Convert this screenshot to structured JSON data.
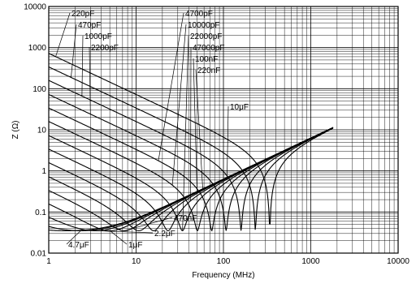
{
  "chart_data": {
    "type": "line",
    "title": "",
    "xlabel": "Frequency (MHz)",
    "ylabel": "Z (Ω)",
    "xscale": "log",
    "yscale": "log",
    "xlim": [
      1,
      10000
    ],
    "ylim": [
      0.01,
      10000
    ],
    "x_ticks": [
      "1",
      "10",
      "100",
      "1000",
      "10000"
    ],
    "y_ticks": [
      "0.01",
      "0.1",
      "1",
      "10",
      "100",
      "1000",
      "10000"
    ],
    "grid": true,
    "esl_nH": 1.0,
    "esr_ohm": 0.035,
    "series": [
      {
        "name": "220pF",
        "capacitance_pF": 220,
        "label_above_plot": true
      },
      {
        "name": "470pF",
        "capacitance_pF": 470,
        "label_above_plot": true
      },
      {
        "name": "1000pF",
        "capacitance_pF": 1000,
        "label_above_plot": true
      },
      {
        "name": "2200pF",
        "capacitance_pF": 2200,
        "label_above_plot": true
      },
      {
        "name": "4700pF",
        "capacitance_pF": 4700,
        "label_above_plot": true
      },
      {
        "name": "10000pF",
        "capacitance_pF": 10000,
        "label_above_plot": true
      },
      {
        "name": "22000pF",
        "capacitance_pF": 22000,
        "label_above_plot": true
      },
      {
        "name": "47000pF",
        "capacitance_pF": 47000,
        "label_above_plot": true
      },
      {
        "name": "100nF",
        "capacitance_pF": 100000,
        "label_above_plot": true
      },
      {
        "name": "220nF",
        "capacitance_pF": 220000,
        "label_above_plot": true
      },
      {
        "name": "470nF",
        "capacitance_pF": 470000,
        "label_above_plot": false
      },
      {
        "name": "1μF",
        "capacitance_pF": 1000000,
        "label_above_plot": false
      },
      {
        "name": "2.2μF",
        "capacitance_pF": 2200000,
        "label_above_plot": false
      },
      {
        "name": "4.7μF",
        "capacitance_pF": 4700000,
        "label_above_plot": false
      },
      {
        "name": "10μF",
        "capacitance_pF": 10000000,
        "label_above_plot": true
      }
    ]
  }
}
